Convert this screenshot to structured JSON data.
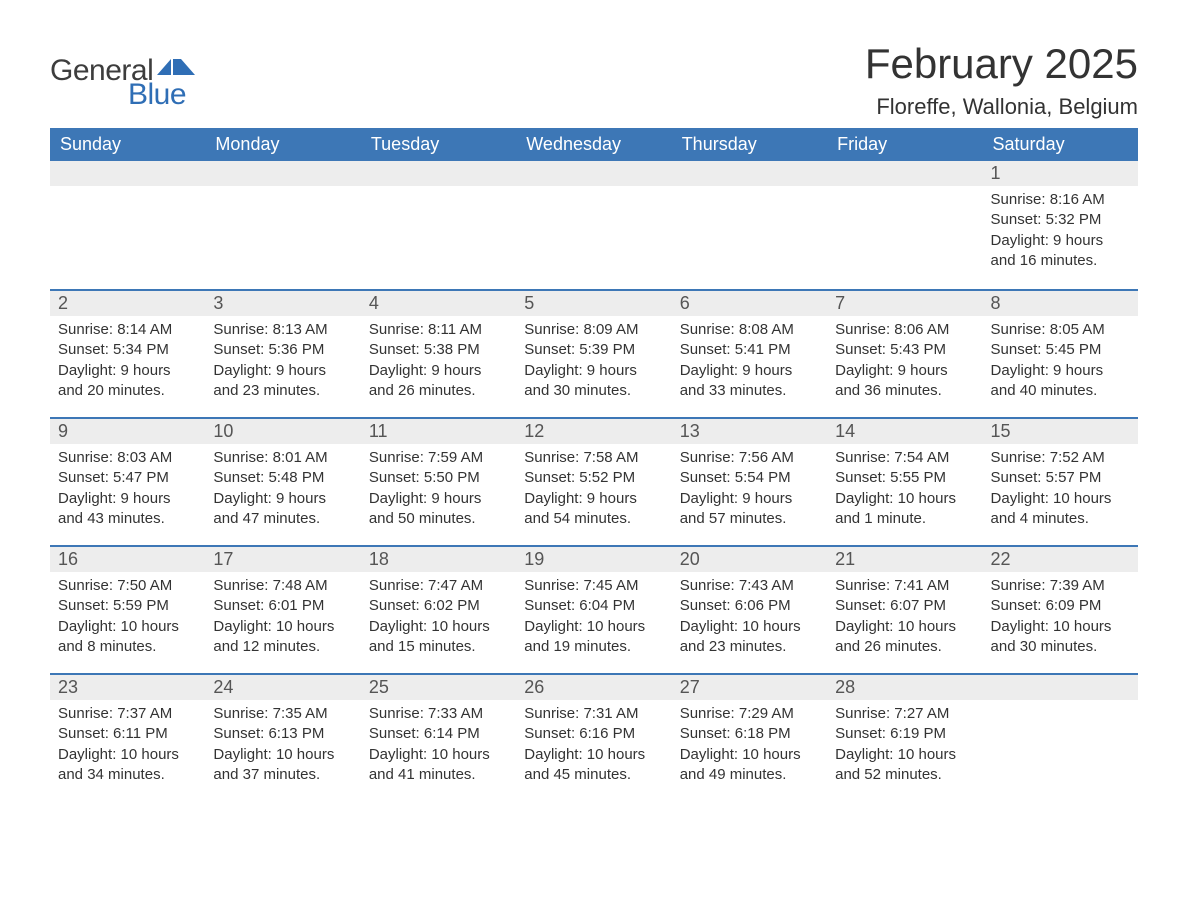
{
  "logo": {
    "text_general": "General",
    "text_blue": "Blue",
    "general_color": "#3d3d3d",
    "blue_color": "#2f6eb5",
    "flag_color": "#2f6eb5"
  },
  "header": {
    "month_title": "February 2025",
    "location": "Floreffe, Wallonia, Belgium",
    "title_fontsize": 42,
    "location_fontsize": 22
  },
  "colors": {
    "header_bg": "#3d77b6",
    "header_text": "#ffffff",
    "daynum_bg": "#ededed",
    "row_border": "#3d77b6",
    "body_text": "#333333",
    "page_bg": "#ffffff"
  },
  "day_headers": [
    "Sunday",
    "Monday",
    "Tuesday",
    "Wednesday",
    "Thursday",
    "Friday",
    "Saturday"
  ],
  "weeks": [
    [
      null,
      null,
      null,
      null,
      null,
      null,
      {
        "n": "1",
        "sunrise": "Sunrise: 8:16 AM",
        "sunset": "Sunset: 5:32 PM",
        "daylight": "Daylight: 9 hours and 16 minutes."
      }
    ],
    [
      {
        "n": "2",
        "sunrise": "Sunrise: 8:14 AM",
        "sunset": "Sunset: 5:34 PM",
        "daylight": "Daylight: 9 hours and 20 minutes."
      },
      {
        "n": "3",
        "sunrise": "Sunrise: 8:13 AM",
        "sunset": "Sunset: 5:36 PM",
        "daylight": "Daylight: 9 hours and 23 minutes."
      },
      {
        "n": "4",
        "sunrise": "Sunrise: 8:11 AM",
        "sunset": "Sunset: 5:38 PM",
        "daylight": "Daylight: 9 hours and 26 minutes."
      },
      {
        "n": "5",
        "sunrise": "Sunrise: 8:09 AM",
        "sunset": "Sunset: 5:39 PM",
        "daylight": "Daylight: 9 hours and 30 minutes."
      },
      {
        "n": "6",
        "sunrise": "Sunrise: 8:08 AM",
        "sunset": "Sunset: 5:41 PM",
        "daylight": "Daylight: 9 hours and 33 minutes."
      },
      {
        "n": "7",
        "sunrise": "Sunrise: 8:06 AM",
        "sunset": "Sunset: 5:43 PM",
        "daylight": "Daylight: 9 hours and 36 minutes."
      },
      {
        "n": "8",
        "sunrise": "Sunrise: 8:05 AM",
        "sunset": "Sunset: 5:45 PM",
        "daylight": "Daylight: 9 hours and 40 minutes."
      }
    ],
    [
      {
        "n": "9",
        "sunrise": "Sunrise: 8:03 AM",
        "sunset": "Sunset: 5:47 PM",
        "daylight": "Daylight: 9 hours and 43 minutes."
      },
      {
        "n": "10",
        "sunrise": "Sunrise: 8:01 AM",
        "sunset": "Sunset: 5:48 PM",
        "daylight": "Daylight: 9 hours and 47 minutes."
      },
      {
        "n": "11",
        "sunrise": "Sunrise: 7:59 AM",
        "sunset": "Sunset: 5:50 PM",
        "daylight": "Daylight: 9 hours and 50 minutes."
      },
      {
        "n": "12",
        "sunrise": "Sunrise: 7:58 AM",
        "sunset": "Sunset: 5:52 PM",
        "daylight": "Daylight: 9 hours and 54 minutes."
      },
      {
        "n": "13",
        "sunrise": "Sunrise: 7:56 AM",
        "sunset": "Sunset: 5:54 PM",
        "daylight": "Daylight: 9 hours and 57 minutes."
      },
      {
        "n": "14",
        "sunrise": "Sunrise: 7:54 AM",
        "sunset": "Sunset: 5:55 PM",
        "daylight": "Daylight: 10 hours and 1 minute."
      },
      {
        "n": "15",
        "sunrise": "Sunrise: 7:52 AM",
        "sunset": "Sunset: 5:57 PM",
        "daylight": "Daylight: 10 hours and 4 minutes."
      }
    ],
    [
      {
        "n": "16",
        "sunrise": "Sunrise: 7:50 AM",
        "sunset": "Sunset: 5:59 PM",
        "daylight": "Daylight: 10 hours and 8 minutes."
      },
      {
        "n": "17",
        "sunrise": "Sunrise: 7:48 AM",
        "sunset": "Sunset: 6:01 PM",
        "daylight": "Daylight: 10 hours and 12 minutes."
      },
      {
        "n": "18",
        "sunrise": "Sunrise: 7:47 AM",
        "sunset": "Sunset: 6:02 PM",
        "daylight": "Daylight: 10 hours and 15 minutes."
      },
      {
        "n": "19",
        "sunrise": "Sunrise: 7:45 AM",
        "sunset": "Sunset: 6:04 PM",
        "daylight": "Daylight: 10 hours and 19 minutes."
      },
      {
        "n": "20",
        "sunrise": "Sunrise: 7:43 AM",
        "sunset": "Sunset: 6:06 PM",
        "daylight": "Daylight: 10 hours and 23 minutes."
      },
      {
        "n": "21",
        "sunrise": "Sunrise: 7:41 AM",
        "sunset": "Sunset: 6:07 PM",
        "daylight": "Daylight: 10 hours and 26 minutes."
      },
      {
        "n": "22",
        "sunrise": "Sunrise: 7:39 AM",
        "sunset": "Sunset: 6:09 PM",
        "daylight": "Daylight: 10 hours and 30 minutes."
      }
    ],
    [
      {
        "n": "23",
        "sunrise": "Sunrise: 7:37 AM",
        "sunset": "Sunset: 6:11 PM",
        "daylight": "Daylight: 10 hours and 34 minutes."
      },
      {
        "n": "24",
        "sunrise": "Sunrise: 7:35 AM",
        "sunset": "Sunset: 6:13 PM",
        "daylight": "Daylight: 10 hours and 37 minutes."
      },
      {
        "n": "25",
        "sunrise": "Sunrise: 7:33 AM",
        "sunset": "Sunset: 6:14 PM",
        "daylight": "Daylight: 10 hours and 41 minutes."
      },
      {
        "n": "26",
        "sunrise": "Sunrise: 7:31 AM",
        "sunset": "Sunset: 6:16 PM",
        "daylight": "Daylight: 10 hours and 45 minutes."
      },
      {
        "n": "27",
        "sunrise": "Sunrise: 7:29 AM",
        "sunset": "Sunset: 6:18 PM",
        "daylight": "Daylight: 10 hours and 49 minutes."
      },
      {
        "n": "28",
        "sunrise": "Sunrise: 7:27 AM",
        "sunset": "Sunset: 6:19 PM",
        "daylight": "Daylight: 10 hours and 52 minutes."
      },
      null
    ]
  ]
}
